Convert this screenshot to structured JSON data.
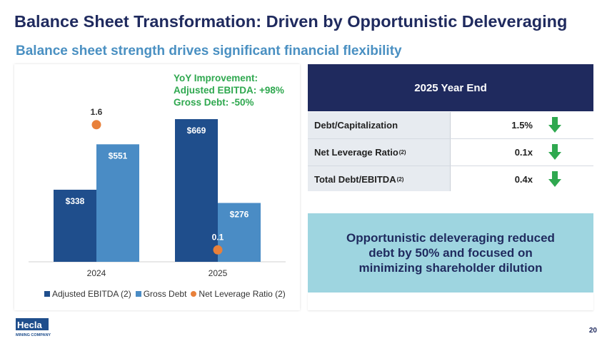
{
  "title": "Balance Sheet Transformation: Driven by Opportunistic Deleveraging",
  "subtitle": "Balance sheet strength drives significant financial flexibility",
  "chart_data": {
    "type": "bar",
    "categories": [
      "2024",
      "2025"
    ],
    "series": [
      {
        "name": "Adjusted EBITDA (2)",
        "values": [
          338,
          669
        ],
        "labels": [
          "$338",
          "$669"
        ],
        "color": "#1f4e8c"
      },
      {
        "name": "Gross Debt",
        "values": [
          551,
          276
        ],
        "labels": [
          "$551",
          "$276"
        ],
        "color": "#4a8cc5"
      }
    ],
    "overlay_series": {
      "name": "Net Leverage Ratio (2)",
      "type": "scatter",
      "values": [
        1.6,
        0.1
      ],
      "labels": [
        "1.6",
        "0.1"
      ],
      "color": "#e8803a"
    },
    "legend_position": "bottom",
    "annotation": [
      "YoY Improvement:",
      "Adjusted EBITDA: +98%",
      "Gross Debt: -50%"
    ]
  },
  "table": {
    "header": "2025 Year End",
    "rows": [
      {
        "label": "Debt/Capitalization",
        "sup": "",
        "value": "1.5%",
        "icon": "down-arrow-icon"
      },
      {
        "label": "Net Leverage Ratio",
        "sup": "(2)",
        "value": "0.1x",
        "icon": "down-arrow-icon"
      },
      {
        "label": "Total Debt/EBITDA",
        "sup": "(2)",
        "value": "0.4x",
        "icon": "down-arrow-icon"
      }
    ]
  },
  "callout": "Opportunistic deleveraging reduced debt by 50% and focused on minimizing shareholder dilution",
  "logo": {
    "name": "Hecla",
    "tagline": "MINING COMPANY"
  },
  "page_number": "20",
  "colors": {
    "navy": "#1f2a5e",
    "accent_blue": "#4a90c2",
    "green": "#2fa84f",
    "orange": "#e8803a",
    "light_blue": "#9ed5e0"
  }
}
